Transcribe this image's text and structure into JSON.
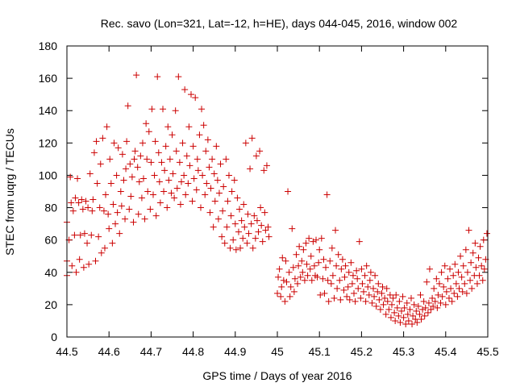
{
  "chart_data": {
    "type": "scatter",
    "title": "Rec. savo (Lon=321, Lat=-12, h=HE), days 044-045, 2016, window 002",
    "xlabel": "GPS time / Days of year 2016",
    "ylabel": "STEC from uqrg / TECUs",
    "xlim": [
      44.5,
      45.5
    ],
    "ylim": [
      0,
      180
    ],
    "xticks": [
      44.5,
      44.6,
      44.7,
      44.8,
      44.9,
      45,
      45.1,
      45.2,
      45.3,
      45.4,
      45.5
    ],
    "xtick_labels": [
      "44.5",
      "44.6",
      "44.7",
      "44.8",
      "44.9",
      "45",
      "45.1",
      "45.2",
      "45.3",
      "45.4",
      "45.5"
    ],
    "yticks": [
      0,
      20,
      40,
      60,
      80,
      100,
      120,
      140,
      160,
      180
    ],
    "ytick_labels": [
      "0",
      "20",
      "40",
      "60",
      "80",
      "100",
      "120",
      "140",
      "160",
      "180"
    ],
    "grid": false,
    "marker": "plus",
    "color": "#cc0000",
    "points": [
      [
        44.5,
        47
      ],
      [
        44.5,
        71
      ],
      [
        44.5,
        38
      ],
      [
        44.505,
        60
      ],
      [
        44.508,
        99
      ],
      [
        44.51,
        83
      ],
      [
        44.512,
        44
      ],
      [
        44.515,
        78
      ],
      [
        44.518,
        63
      ],
      [
        44.52,
        86
      ],
      [
        44.522,
        40
      ],
      [
        44.525,
        98
      ],
      [
        44.528,
        83
      ],
      [
        44.53,
        48
      ],
      [
        44.532,
        63
      ],
      [
        44.535,
        85
      ],
      [
        44.538,
        79
      ],
      [
        44.54,
        43
      ],
      [
        44.542,
        64
      ],
      [
        44.545,
        84
      ],
      [
        44.548,
        58
      ],
      [
        44.55,
        80
      ],
      [
        44.552,
        45
      ],
      [
        44.555,
        101
      ],
      [
        44.558,
        63
      ],
      [
        44.56,
        78
      ],
      [
        44.562,
        85
      ],
      [
        44.565,
        114
      ],
      [
        44.568,
        47
      ],
      [
        44.57,
        121
      ],
      [
        44.572,
        95
      ],
      [
        44.575,
        62
      ],
      [
        44.578,
        80
      ],
      [
        44.58,
        107
      ],
      [
        44.582,
        52
      ],
      [
        44.585,
        123
      ],
      [
        44.588,
        78
      ],
      [
        44.59,
        55
      ],
      [
        44.592,
        88
      ],
      [
        44.595,
        130
      ],
      [
        44.598,
        76
      ],
      [
        44.6,
        67
      ],
      [
        44.602,
        110
      ],
      [
        44.605,
        95
      ],
      [
        44.608,
        58
      ],
      [
        44.61,
        82
      ],
      [
        44.612,
        120
      ],
      [
        44.615,
        70
      ],
      [
        44.618,
        100
      ],
      [
        44.62,
        77
      ],
      [
        44.622,
        117
      ],
      [
        44.625,
        64
      ],
      [
        44.628,
        90
      ],
      [
        44.63,
        81
      ],
      [
        44.632,
        113
      ],
      [
        44.635,
        97
      ],
      [
        44.638,
        73
      ],
      [
        44.64,
        104
      ],
      [
        44.642,
        121
      ],
      [
        44.645,
        143
      ],
      [
        44.648,
        79
      ],
      [
        44.65,
        107
      ],
      [
        44.652,
        87
      ],
      [
        44.655,
        99
      ],
      [
        44.658,
        71
      ],
      [
        44.66,
        110
      ],
      [
        44.662,
        115
      ],
      [
        44.665,
        162
      ],
      [
        44.668,
        105
      ],
      [
        44.67,
        76
      ],
      [
        44.672,
        96
      ],
      [
        44.675,
        112
      ],
      [
        44.678,
        86
      ],
      [
        44.68,
        120
      ],
      [
        44.682,
        98
      ],
      [
        44.685,
        73
      ],
      [
        44.688,
        132
      ],
      [
        44.69,
        110
      ],
      [
        44.692,
        90
      ],
      [
        44.695,
        127
      ],
      [
        44.698,
        79
      ],
      [
        44.7,
        108
      ],
      [
        44.702,
        141
      ],
      [
        44.705,
        88
      ],
      [
        44.708,
        100
      ],
      [
        44.71,
        121
      ],
      [
        44.712,
        75
      ],
      [
        44.715,
        161
      ],
      [
        44.718,
        114
      ],
      [
        44.72,
        96
      ],
      [
        44.722,
        83
      ],
      [
        44.725,
        108
      ],
      [
        44.728,
        141
      ],
      [
        44.73,
        90
      ],
      [
        44.732,
        103
      ],
      [
        44.735,
        118
      ],
      [
        44.738,
        80
      ],
      [
        44.74,
        130
      ],
      [
        44.742,
        97
      ],
      [
        44.745,
        110
      ],
      [
        44.748,
        89
      ],
      [
        44.75,
        125
      ],
      [
        44.752,
        101
      ],
      [
        44.755,
        86
      ],
      [
        44.758,
        140
      ],
      [
        44.76,
        115
      ],
      [
        44.762,
        92
      ],
      [
        44.765,
        161
      ],
      [
        44.768,
        108
      ],
      [
        44.77,
        82
      ],
      [
        44.772,
        96
      ],
      [
        44.775,
        120
      ],
      [
        44.778,
        100
      ],
      [
        44.78,
        153
      ],
      [
        44.782,
        88
      ],
      [
        44.785,
        112
      ],
      [
        44.788,
        95
      ],
      [
        44.79,
        130
      ],
      [
        44.792,
        106
      ],
      [
        44.795,
        150
      ],
      [
        44.798,
        84
      ],
      [
        44.8,
        118
      ],
      [
        44.802,
        98
      ],
      [
        44.805,
        148
      ],
      [
        44.808,
        91
      ],
      [
        44.81,
        110
      ],
      [
        44.812,
        103
      ],
      [
        44.815,
        125
      ],
      [
        44.818,
        80
      ],
      [
        44.82,
        141
      ],
      [
        44.822,
        100
      ],
      [
        44.825,
        131
      ],
      [
        44.828,
        88
      ],
      [
        44.83,
        115
      ],
      [
        44.832,
        95
      ],
      [
        44.835,
        122
      ],
      [
        44.838,
        105
      ],
      [
        44.84,
        77
      ],
      [
        44.842,
        92
      ],
      [
        44.845,
        110
      ],
      [
        44.848,
        68
      ],
      [
        44.85,
        101
      ],
      [
        44.852,
        84
      ],
      [
        44.855,
        118
      ],
      [
        44.858,
        97
      ],
      [
        44.86,
        73
      ],
      [
        44.862,
        89
      ],
      [
        44.865,
        107
      ],
      [
        44.868,
        62
      ],
      [
        44.87,
        78
      ],
      [
        44.872,
        93
      ],
      [
        44.875,
        58
      ],
      [
        44.878,
        110
      ],
      [
        44.88,
        68
      ],
      [
        44.882,
        84
      ],
      [
        44.885,
        100
      ],
      [
        44.888,
        55
      ],
      [
        44.89,
        75
      ],
      [
        44.892,
        90
      ],
      [
        44.895,
        60
      ],
      [
        44.898,
        97
      ],
      [
        44.9,
        70
      ],
      [
        44.902,
        54
      ],
      [
        44.905,
        86
      ],
      [
        44.908,
        65
      ],
      [
        44.91,
        79
      ],
      [
        44.912,
        55
      ],
      [
        44.915,
        72
      ],
      [
        44.918,
        61
      ],
      [
        44.92,
        82
      ],
      [
        44.922,
        68
      ],
      [
        44.925,
        120
      ],
      [
        44.928,
        58
      ],
      [
        44.93,
        76
      ],
      [
        44.932,
        64
      ],
      [
        44.935,
        104
      ],
      [
        44.938,
        70
      ],
      [
        44.94,
        123
      ],
      [
        44.942,
        55
      ],
      [
        44.945,
        75
      ],
      [
        44.948,
        61
      ],
      [
        44.95,
        112
      ],
      [
        44.952,
        72
      ],
      [
        44.955,
        65
      ],
      [
        44.958,
        115
      ],
      [
        44.96,
        80
      ],
      [
        44.962,
        69
      ],
      [
        44.965,
        59
      ],
      [
        44.968,
        103
      ],
      [
        44.97,
        77
      ],
      [
        44.972,
        66
      ],
      [
        44.975,
        106
      ],
      [
        44.978,
        68
      ],
      [
        44.98,
        62
      ],
      [
        45.0,
        27
      ],
      [
        45.002,
        37
      ],
      [
        45.005,
        42
      ],
      [
        45.008,
        25
      ],
      [
        45.01,
        31
      ],
      [
        45.012,
        49
      ],
      [
        45.015,
        35
      ],
      [
        45.018,
        22
      ],
      [
        45.02,
        47
      ],
      [
        45.022,
        34
      ],
      [
        45.025,
        90
      ],
      [
        45.028,
        40
      ],
      [
        45.03,
        25
      ],
      [
        45.032,
        31
      ],
      [
        45.035,
        67
      ],
      [
        45.038,
        43
      ],
      [
        45.04,
        28
      ],
      [
        45.042,
        36
      ],
      [
        45.045,
        51
      ],
      [
        45.048,
        33
      ],
      [
        45.05,
        44
      ],
      [
        45.052,
        56
      ],
      [
        45.055,
        37
      ],
      [
        45.058,
        47
      ],
      [
        45.06,
        40
      ],
      [
        45.062,
        54
      ],
      [
        45.065,
        35
      ],
      [
        45.068,
        58
      ],
      [
        45.07,
        45
      ],
      [
        45.072,
        38
      ],
      [
        45.075,
        61
      ],
      [
        45.078,
        42
      ],
      [
        45.08,
        50
      ],
      [
        45.082,
        35
      ],
      [
        45.085,
        59
      ],
      [
        45.088,
        44
      ],
      [
        45.09,
        38
      ],
      [
        45.092,
        60
      ],
      [
        45.095,
        37
      ],
      [
        45.098,
        46
      ],
      [
        45.1,
        54
      ],
      [
        45.102,
        26
      ],
      [
        45.105,
        61
      ],
      [
        45.108,
        36
      ],
      [
        45.11,
        48
      ],
      [
        45.112,
        27
      ],
      [
        45.115,
        43
      ],
      [
        45.118,
        88
      ],
      [
        45.12,
        35
      ],
      [
        45.122,
        22
      ],
      [
        45.125,
        47
      ],
      [
        45.128,
        33
      ],
      [
        45.13,
        55
      ],
      [
        45.132,
        38
      ],
      [
        45.135,
        24
      ],
      [
        45.138,
        66
      ],
      [
        45.14,
        44
      ],
      [
        45.142,
        30
      ],
      [
        45.145,
        51
      ],
      [
        45.148,
        35
      ],
      [
        45.15,
        23
      ],
      [
        45.152,
        42
      ],
      [
        45.155,
        48
      ],
      [
        45.158,
        29
      ],
      [
        45.16,
        37
      ],
      [
        45.162,
        44
      ],
      [
        45.165,
        25
      ],
      [
        45.168,
        31
      ],
      [
        45.17,
        40
      ],
      [
        45.172,
        23
      ],
      [
        45.175,
        46
      ],
      [
        45.178,
        33
      ],
      [
        45.18,
        38
      ],
      [
        45.182,
        27
      ],
      [
        45.185,
        22
      ],
      [
        45.188,
        41
      ],
      [
        45.19,
        36
      ],
      [
        45.192,
        30
      ],
      [
        45.195,
        59
      ],
      [
        45.198,
        24
      ],
      [
        45.2,
        42
      ],
      [
        45.202,
        33
      ],
      [
        45.205,
        28
      ],
      [
        45.208,
        38
      ],
      [
        45.21,
        22
      ],
      [
        45.212,
        44
      ],
      [
        45.215,
        31
      ],
      [
        45.218,
        26
      ],
      [
        45.22,
        35
      ],
      [
        45.222,
        40
      ],
      [
        45.225,
        21
      ],
      [
        45.228,
        30
      ],
      [
        45.23,
        25
      ],
      [
        45.232,
        38
      ],
      [
        45.235,
        19
      ],
      [
        45.238,
        28
      ],
      [
        45.24,
        33
      ],
      [
        45.242,
        23
      ],
      [
        45.245,
        17
      ],
      [
        45.248,
        27
      ],
      [
        45.25,
        31
      ],
      [
        45.252,
        20
      ],
      [
        45.255,
        24
      ],
      [
        45.258,
        14
      ],
      [
        45.26,
        30
      ],
      [
        45.262,
        22
      ],
      [
        45.265,
        17
      ],
      [
        45.268,
        26
      ],
      [
        45.27,
        12
      ],
      [
        45.272,
        20
      ],
      [
        45.275,
        24
      ],
      [
        45.278,
        15
      ],
      [
        45.28,
        10
      ],
      [
        45.282,
        26
      ],
      [
        45.285,
        18
      ],
      [
        45.288,
        13
      ],
      [
        45.29,
        22
      ],
      [
        45.292,
        9
      ],
      [
        45.295,
        16
      ],
      [
        45.298,
        25
      ],
      [
        45.3,
        12
      ],
      [
        45.302,
        18
      ],
      [
        45.305,
        8
      ],
      [
        45.308,
        21
      ],
      [
        45.31,
        14
      ],
      [
        45.312,
        10
      ],
      [
        45.315,
        17
      ],
      [
        45.318,
        24
      ],
      [
        45.32,
        8
      ],
      [
        45.322,
        13
      ],
      [
        45.325,
        20
      ],
      [
        45.328,
        11
      ],
      [
        45.33,
        16
      ],
      [
        45.332,
        9
      ],
      [
        45.335,
        19
      ],
      [
        45.338,
        14
      ],
      [
        45.34,
        26
      ],
      [
        45.342,
        11
      ],
      [
        45.345,
        17
      ],
      [
        45.348,
        22
      ],
      [
        45.35,
        13
      ],
      [
        45.352,
        18
      ],
      [
        45.355,
        34
      ],
      [
        45.358,
        15
      ],
      [
        45.36,
        21
      ],
      [
        45.362,
        42
      ],
      [
        45.365,
        17
      ],
      [
        45.368,
        24
      ],
      [
        45.37,
        19
      ],
      [
        45.372,
        30
      ],
      [
        45.375,
        22
      ],
      [
        45.378,
        36
      ],
      [
        45.38,
        18
      ],
      [
        45.382,
        26
      ],
      [
        45.385,
        33
      ],
      [
        45.388,
        21
      ],
      [
        45.39,
        40
      ],
      [
        45.392,
        25
      ],
      [
        45.395,
        31
      ],
      [
        45.398,
        44
      ],
      [
        45.4,
        20
      ],
      [
        45.402,
        28
      ],
      [
        45.405,
        36
      ],
      [
        45.408,
        24
      ],
      [
        45.41,
        42
      ],
      [
        45.412,
        30
      ],
      [
        45.415,
        22
      ],
      [
        45.418,
        38
      ],
      [
        45.42,
        27
      ],
      [
        45.422,
        45
      ],
      [
        45.425,
        33
      ],
      [
        45.428,
        25
      ],
      [
        45.43,
        40
      ],
      [
        45.432,
        30
      ],
      [
        45.435,
        50
      ],
      [
        45.438,
        37
      ],
      [
        45.44,
        28
      ],
      [
        45.442,
        44
      ],
      [
        45.445,
        33
      ],
      [
        45.448,
        54
      ],
      [
        45.45,
        27
      ],
      [
        45.452,
        40
      ],
      [
        45.455,
        66
      ],
      [
        45.458,
        35
      ],
      [
        45.46,
        46
      ],
      [
        45.462,
        30
      ],
      [
        45.465,
        52
      ],
      [
        45.468,
        38
      ],
      [
        45.47,
        58
      ],
      [
        45.472,
        43
      ],
      [
        45.475,
        33
      ],
      [
        45.478,
        49
      ],
      [
        45.48,
        38
      ],
      [
        45.482,
        56
      ],
      [
        45.485,
        44
      ],
      [
        45.488,
        35
      ],
      [
        45.49,
        60
      ],
      [
        45.492,
        42
      ],
      [
        45.495,
        48
      ],
      [
        45.498,
        64
      ]
    ]
  }
}
